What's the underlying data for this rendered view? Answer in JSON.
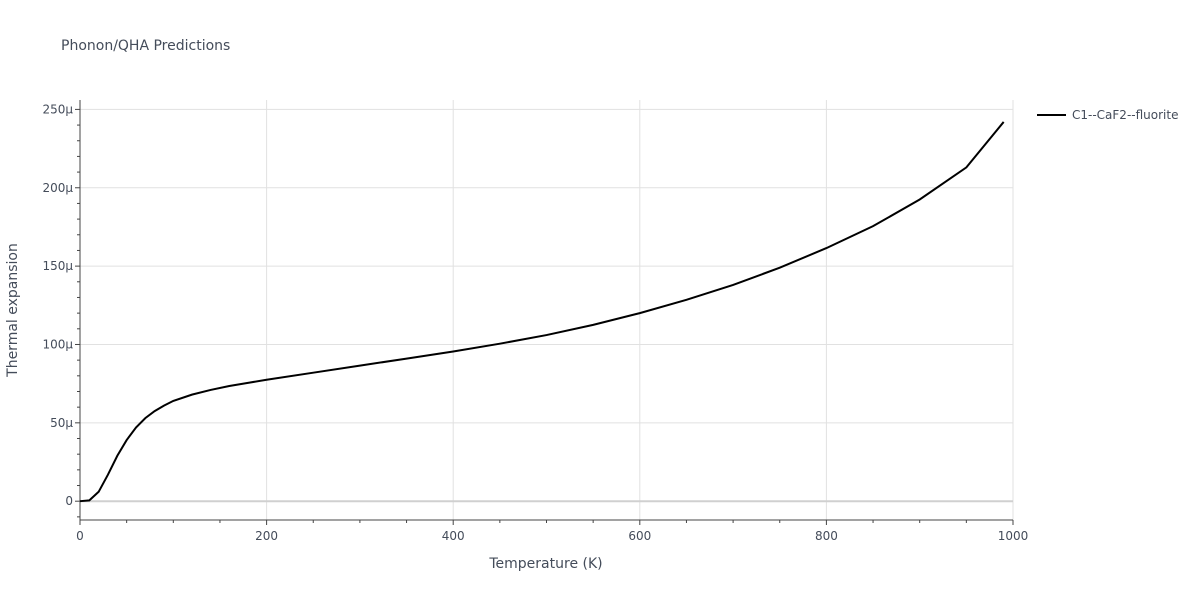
{
  "chart_data": {
    "type": "line",
    "title": "Phonon/QHA Predictions",
    "xlabel": "Temperature (K)",
    "ylabel": "Thermal expansion",
    "xlim": [
      0,
      1000
    ],
    "ylim": [
      -1.2e-05,
      0.000256
    ],
    "x_ticks": [
      0,
      200,
      400,
      600,
      800,
      1000
    ],
    "x_tick_labels": [
      "0",
      "200",
      "400",
      "600",
      "800",
      "1000"
    ],
    "y_ticks": [
      0,
      5e-05,
      0.0001,
      0.00015,
      0.0002,
      0.00025
    ],
    "y_tick_labels": [
      "0",
      "50μ",
      "100μ",
      "150μ",
      "200μ",
      "250μ"
    ],
    "grid": true,
    "legend_position": "top-right",
    "series": [
      {
        "name": "C1--CaF2--fluorite",
        "color": "#000000",
        "x": [
          0,
          10,
          20,
          30,
          40,
          50,
          60,
          70,
          80,
          90,
          100,
          120,
          140,
          160,
          180,
          200,
          250,
          300,
          350,
          400,
          450,
          500,
          550,
          600,
          650,
          700,
          750,
          800,
          850,
          900,
          950,
          990
        ],
        "y": [
          0,
          5e-07,
          6e-06,
          1.7e-05,
          2.9e-05,
          3.9e-05,
          4.7e-05,
          5.3e-05,
          5.75e-05,
          6.1e-05,
          6.4e-05,
          6.8e-05,
          7.1e-05,
          7.35e-05,
          7.55e-05,
          7.75e-05,
          8.2e-05,
          8.65e-05,
          9.1e-05,
          9.55e-05,
          0.0001005,
          0.000106,
          0.0001125,
          0.00012,
          0.0001285,
          0.000138,
          0.000149,
          0.0001615,
          0.0001755,
          0.0001925,
          0.000213,
          0.000242
        ]
      }
    ]
  }
}
